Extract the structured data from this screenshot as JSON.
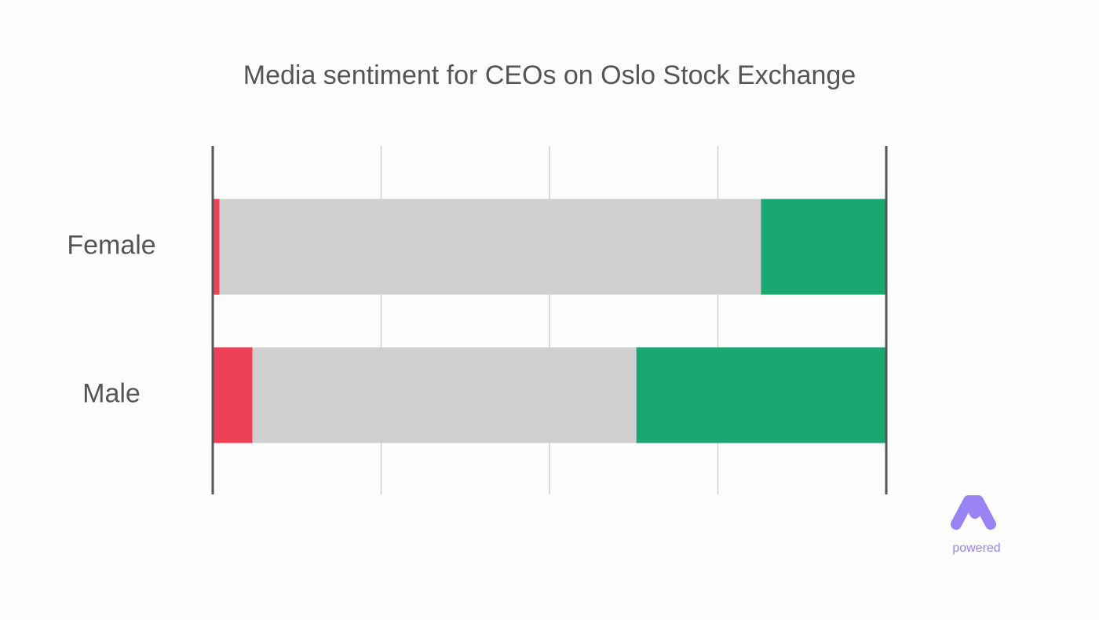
{
  "chart_data": {
    "type": "stacked-barh",
    "title": "Media sentiment for CEOs on Oslo Stock Exchange",
    "categories": [
      "Female",
      "Male"
    ],
    "series": [
      {
        "color": "#ef4155",
        "values": [
          1.0,
          5.9
        ]
      },
      {
        "color": "#cfcfcf",
        "values": [
          80.4,
          57.0
        ]
      },
      {
        "color": "#1aa772",
        "values": [
          18.6,
          37.1
        ]
      }
    ],
    "xlim": [
      0,
      100
    ],
    "xticks": [
      0,
      25,
      50,
      75,
      100
    ],
    "grid": true
  },
  "logo": {
    "text": "powered"
  }
}
